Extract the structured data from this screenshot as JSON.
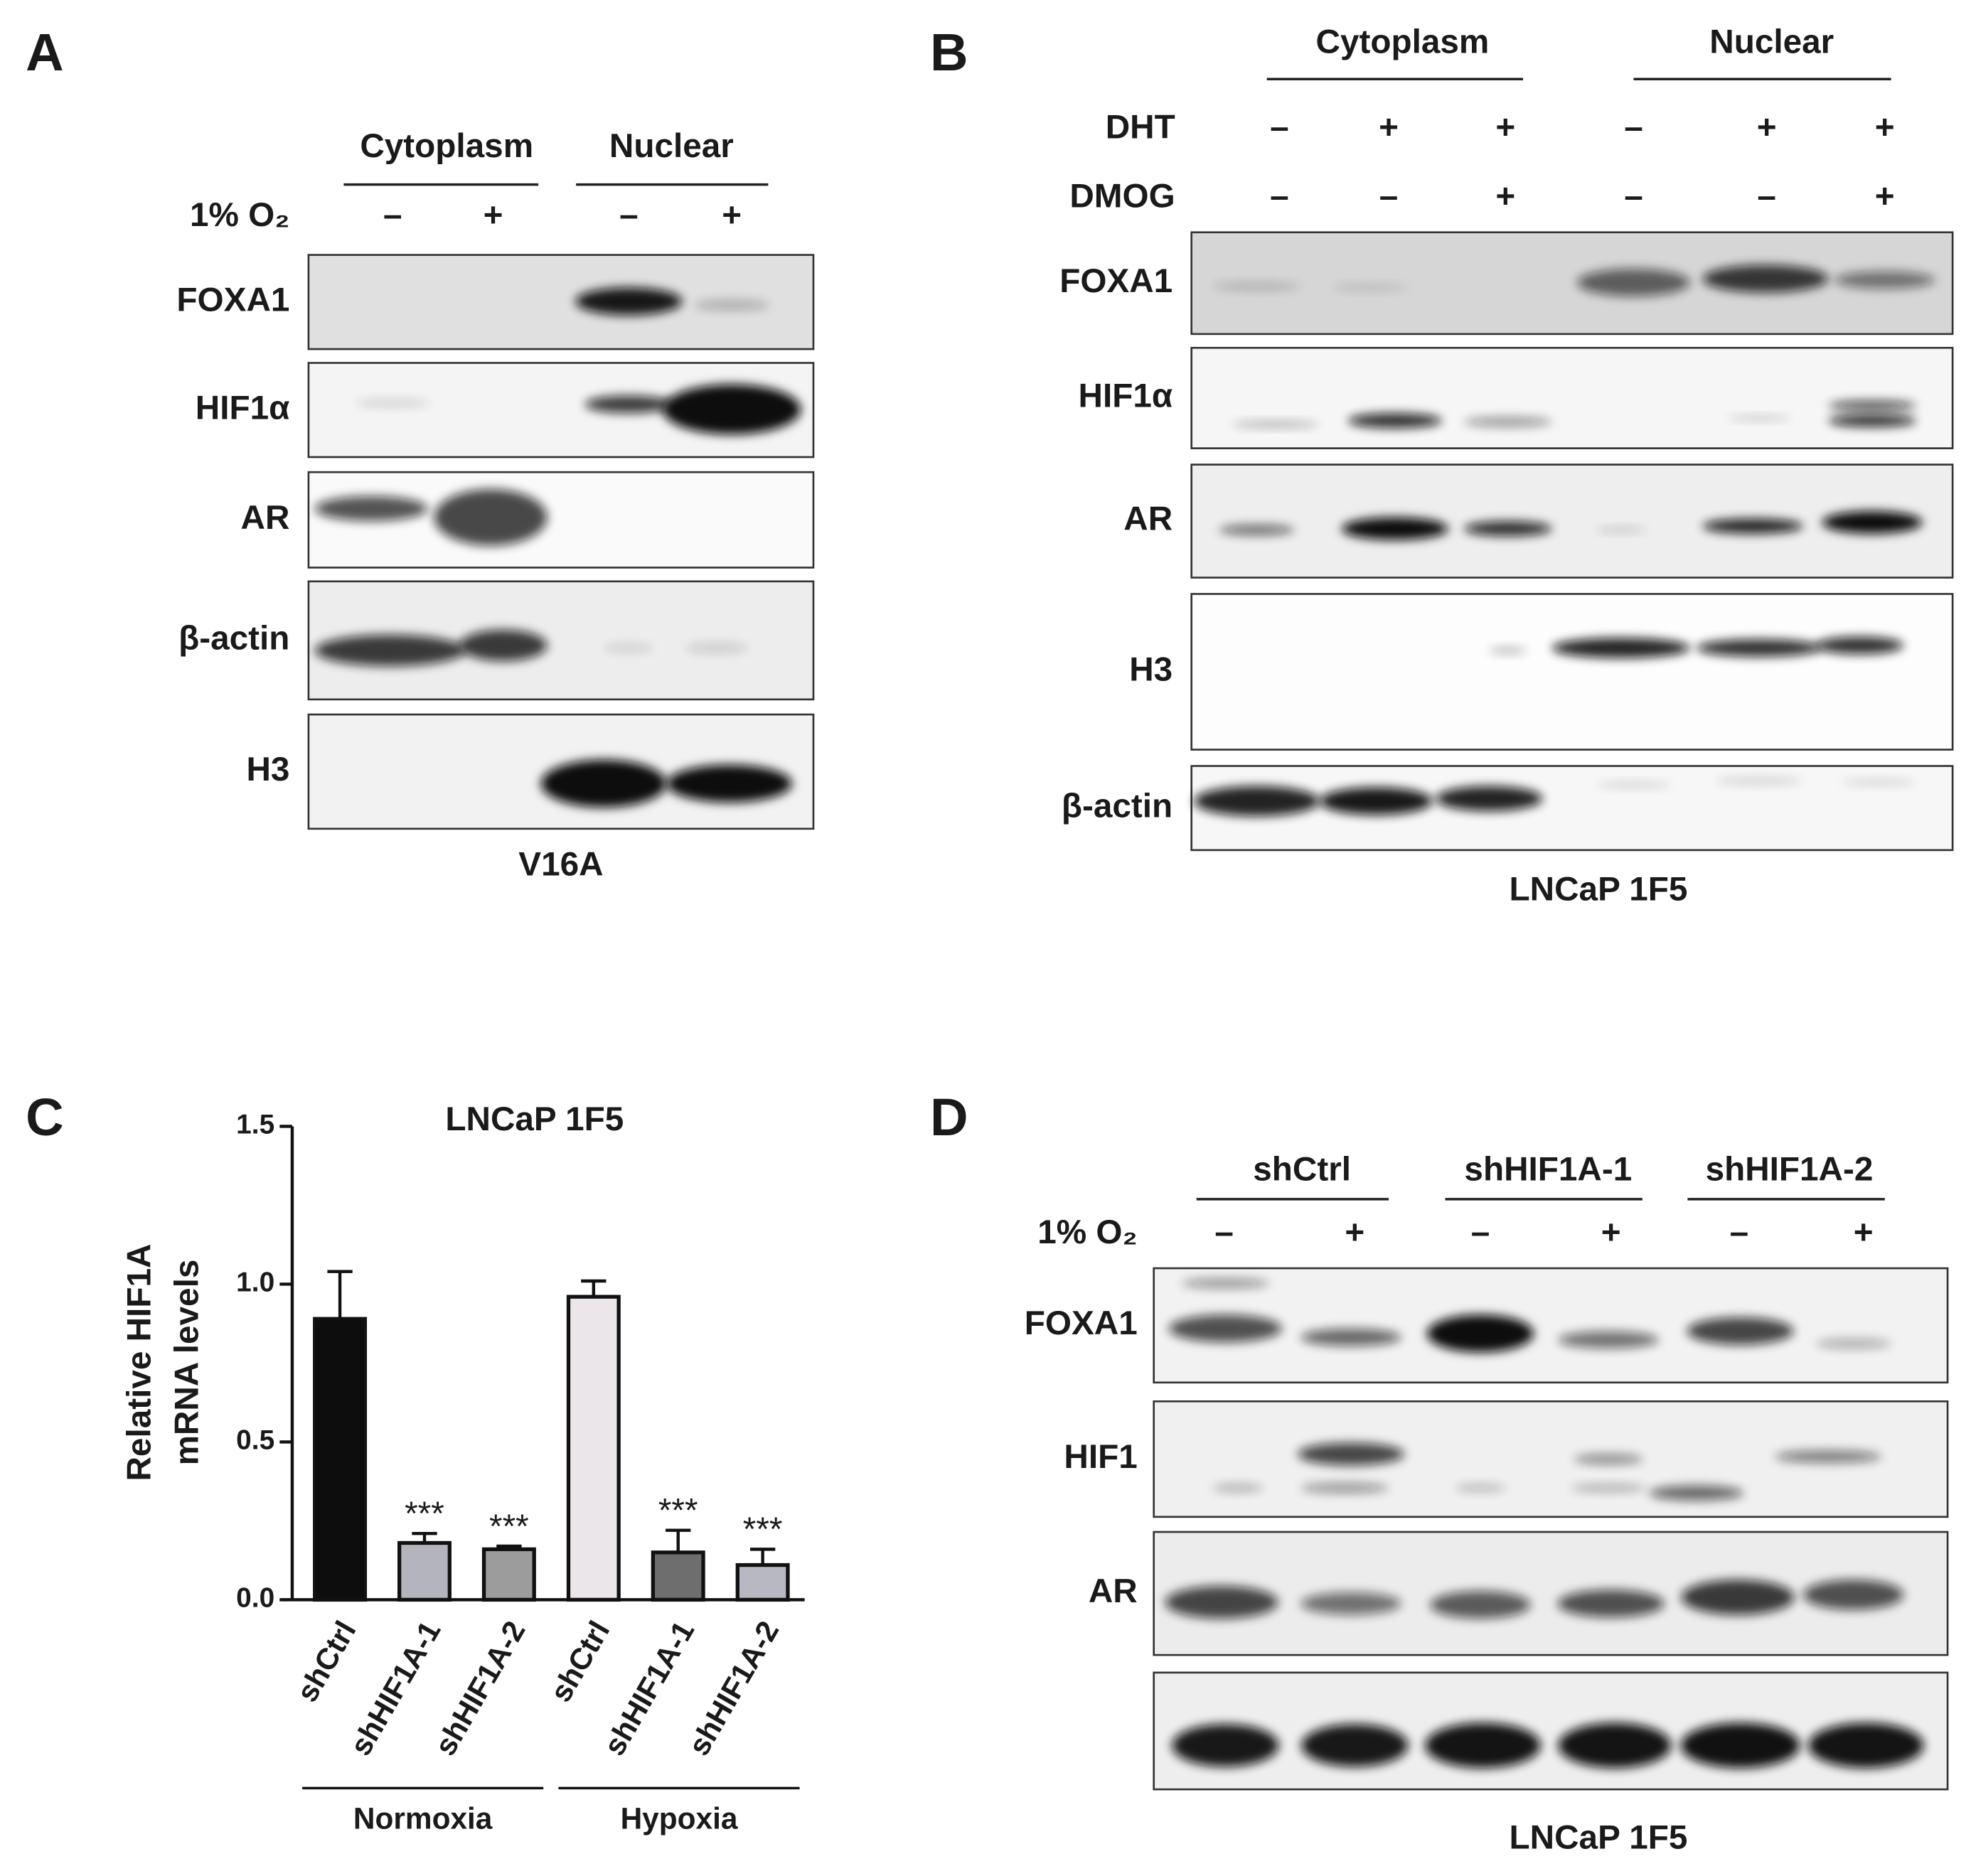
{
  "panel_a": {
    "letter": "A",
    "groups": [
      "Cytoplasm",
      "Nuclear"
    ],
    "conditions": [
      {
        "label": "1% O₂",
        "signs": [
          "–",
          "+",
          "–",
          "+"
        ]
      }
    ],
    "rows": [
      "FOXA1",
      "HIF1α",
      "AR",
      "β-actin",
      "H3"
    ],
    "footer": "V16A"
  },
  "panel_b": {
    "letter": "B",
    "groups": [
      "Cytoplasm",
      "Nuclear"
    ],
    "conditions": [
      {
        "label": "DHT",
        "signs": [
          "–",
          "+",
          "+",
          "–",
          "+",
          "+"
        ]
      },
      {
        "label": "DMOG",
        "signs": [
          "–",
          "–",
          "+",
          "–",
          "–",
          "+"
        ]
      }
    ],
    "rows": [
      "FOXA1",
      "HIF1α",
      "AR",
      "H3",
      "β-actin"
    ],
    "footer": "LNCaP 1F5"
  },
  "panel_c": {
    "letter": "C"
  },
  "chart_data": {
    "type": "bar",
    "title": "LNCaP 1F5",
    "y_label": [
      "Relative HIF1A",
      "mRNA levels"
    ],
    "categories": [
      "shCtrl",
      "shHIF1A-1",
      "shHIF1A-2",
      "shCtrl",
      "shHIF1A-1",
      "shHIF1A-2"
    ],
    "values": [
      0.89,
      0.18,
      0.16,
      0.96,
      0.15,
      0.11
    ],
    "errors": [
      0.15,
      0.03,
      0.01,
      0.05,
      0.07,
      0.05
    ],
    "significance": [
      null,
      "***",
      "***",
      null,
      "***",
      "***"
    ],
    "colors": [
      "#0d0d0d",
      "#b4b4bc",
      "#9c9c9c",
      "#ebe6ea",
      "#6e6e6e",
      "#b8b8c2"
    ],
    "groups": [
      "Normoxia",
      "Hypoxia"
    ],
    "ylim": [
      0,
      1.5
    ],
    "yticks": [
      {
        "value": 0,
        "label": "0.0"
      },
      {
        "value": 0.5,
        "label": "0.5"
      },
      {
        "value": 1,
        "label": "1.0"
      },
      {
        "value": 1.5,
        "label": "1.5"
      }
    ]
  },
  "panel_d": {
    "letter": "D",
    "groups": [
      "shCtrl",
      "shHIF1A-1",
      "shHIF1A-2"
    ],
    "conditions": [
      {
        "label": "1% O₂",
        "signs": [
          "–",
          "+",
          "–",
          "+",
          "–",
          "+"
        ]
      }
    ],
    "rows": [
      "FOXA1",
      "HIF1",
      "AR"
    ],
    "footer": "LNCaP 1F5"
  }
}
